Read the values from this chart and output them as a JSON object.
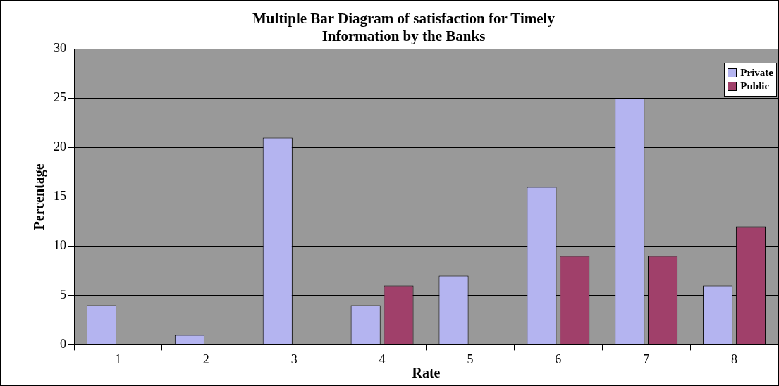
{
  "chart_data": {
    "type": "bar",
    "title": "Multiple Bar Diagram of satisfaction for Timely Information by the Banks",
    "xlabel": "Rate",
    "ylabel": "Percentage",
    "categories": [
      "1",
      "2",
      "3",
      "4",
      "5",
      "6",
      "7",
      "8"
    ],
    "series": [
      {
        "name": "Private",
        "color": "#b4b4f0",
        "values": [
          4,
          1,
          21,
          4,
          7,
          16,
          25,
          6
        ]
      },
      {
        "name": "Public",
        "color": "#a0406a",
        "values": [
          null,
          null,
          null,
          6,
          null,
          9,
          9,
          12
        ]
      }
    ],
    "ylim": [
      0,
      30
    ],
    "yticks": [
      0,
      5,
      10,
      15,
      20,
      25,
      30
    ],
    "grid": "y",
    "legend": "top right"
  }
}
